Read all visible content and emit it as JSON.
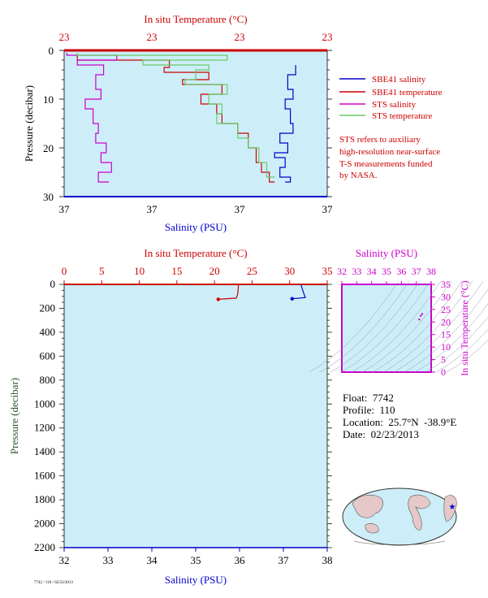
{
  "colors": {
    "plot_bg": "#cdeef8",
    "temperature": "#cc0000",
    "salinity": "#0000cc",
    "sts_salinity": "#cc00cc",
    "sts_temperature": "#66cc66",
    "axis": "#333333",
    "pressure_label": "#2a552a"
  },
  "chart_data": [
    {
      "type": "line",
      "name": "near-surface-profile",
      "top_axis_label": "In situ Temperature (°C)",
      "top_ticks": [
        "23",
        "23",
        "23",
        "23"
      ],
      "bottom_axis_label": "Salinity (PSU)",
      "bottom_ticks": [
        "37",
        "37",
        "37",
        "37"
      ],
      "ylabel": "Pressure (decibar)",
      "y_ticks": [
        "0",
        "10",
        "20",
        "30"
      ],
      "ylim": [
        0,
        30
      ],
      "legend": [
        {
          "label": "SBE41 salinity",
          "color": "#0000cc"
        },
        {
          "label": "SBE41 temperature",
          "color": "#cc0000"
        },
        {
          "label": "STS salinity",
          "color": "#cc00cc"
        },
        {
          "label": "STS temperature",
          "color": "#66cc66"
        }
      ],
      "note": [
        "STS refers to auxiliary",
        "high-resolution near-surface",
        "T-S measurements funded",
        "by NASA."
      ],
      "series": [
        {
          "name": "SBE41 salinity",
          "key": "sbe_sal",
          "scale": "x",
          "points": [
            [
              0.88,
              3
            ],
            [
              0.85,
              5
            ],
            [
              0.87,
              8
            ],
            [
              0.84,
              10
            ],
            [
              0.86,
              12
            ],
            [
              0.87,
              15
            ],
            [
              0.82,
              17
            ],
            [
              0.85,
              19
            ],
            [
              0.8,
              21
            ],
            [
              0.84,
              22
            ],
            [
              0.82,
              24
            ],
            [
              0.86,
              26
            ],
            [
              0.84,
              27
            ]
          ]
        },
        {
          "name": "SBE41 temperature",
          "key": "sbe_tem",
          "scale": "x",
          "points": [
            [
              0.05,
              1
            ],
            [
              0.4,
              2
            ],
            [
              0.38,
              3.5
            ],
            [
              0.55,
              4.5
            ],
            [
              0.45,
              6
            ],
            [
              0.6,
              7
            ],
            [
              0.52,
              9
            ],
            [
              0.58,
              11
            ],
            [
              0.6,
              13
            ],
            [
              0.66,
              15
            ],
            [
              0.7,
              17
            ],
            [
              0.73,
              20
            ],
            [
              0.75,
              23
            ],
            [
              0.78,
              25
            ],
            [
              0.8,
              27
            ]
          ]
        },
        {
          "name": "STS salinity",
          "key": "sts_sal",
          "scale": "x",
          "points": [
            [
              0.01,
              0.5
            ],
            [
              0.2,
              1
            ],
            [
              0.05,
              2
            ],
            [
              0.15,
              3
            ],
            [
              0.12,
              5
            ],
            [
              0.14,
              8
            ],
            [
              0.08,
              10
            ],
            [
              0.11,
              12
            ],
            [
              0.13,
              15
            ],
            [
              0.12,
              17
            ],
            [
              0.16,
              19
            ],
            [
              0.14,
              21
            ],
            [
              0.18,
              23
            ],
            [
              0.13,
              25
            ],
            [
              0.17,
              27
            ]
          ]
        },
        {
          "name": "STS temperature",
          "key": "sts_tem",
          "scale": "x",
          "points": [
            [
              0.05,
              0.5
            ],
            [
              0.62,
              1
            ],
            [
              0.3,
              2
            ],
            [
              0.55,
              3
            ],
            [
              0.5,
              4
            ],
            [
              0.46,
              6
            ],
            [
              0.62,
              7
            ],
            [
              0.55,
              9
            ],
            [
              0.6,
              11
            ],
            [
              0.58,
              13
            ],
            [
              0.66,
              15
            ],
            [
              0.7,
              18
            ],
            [
              0.74,
              20
            ],
            [
              0.77,
              23
            ],
            [
              0.8,
              26
            ]
          ]
        }
      ]
    },
    {
      "type": "line",
      "name": "full-depth-profile",
      "top_axis_label": "In situ Temperature (°C)",
      "top_ticks": [
        "0",
        "5",
        "10",
        "15",
        "20",
        "25",
        "30",
        "35"
      ],
      "xlim_top": [
        0,
        35
      ],
      "bottom_axis_label": "Salinity (PSU)",
      "bottom_ticks": [
        "32",
        "33",
        "34",
        "35",
        "36",
        "37",
        "38"
      ],
      "xlim_bottom": [
        32,
        38
      ],
      "ylabel": "Pressure (decibar)",
      "y_ticks": [
        "0",
        "200",
        "400",
        "600",
        "800",
        "1000",
        "1200",
        "1400",
        "1600",
        "1800",
        "2000",
        "2200"
      ],
      "ylim": [
        0,
        2200
      ],
      "series": [
        {
          "name": "Temperature",
          "key": "temperature",
          "axis": "top",
          "points": [
            [
              23.2,
              0
            ],
            [
              23.1,
              80
            ],
            [
              22.9,
              115
            ],
            [
              20.5,
              125
            ]
          ]
        },
        {
          "name": "Salinity",
          "key": "salinity",
          "axis": "bottom",
          "points": [
            [
              37.4,
              0
            ],
            [
              37.45,
              60
            ],
            [
              37.5,
              110
            ],
            [
              37.2,
              120
            ]
          ]
        }
      ]
    },
    {
      "type": "scatter",
      "name": "ts-diagram",
      "top_axis_label": "Salinity (PSU)",
      "x_ticks": [
        "32",
        "33",
        "34",
        "35",
        "36",
        "37",
        "38"
      ],
      "xlim": [
        32,
        38
      ],
      "right_axis_label": "In situ Temperature (°C)",
      "y_ticks": [
        "0",
        "5",
        "10",
        "15",
        "20",
        "25",
        "30",
        "35"
      ],
      "ylim": [
        0,
        35
      ],
      "points": [
        [
          37.4,
          23.2
        ],
        [
          37.3,
          22.5
        ],
        [
          37.2,
          21.0
        ]
      ]
    }
  ],
  "info": {
    "float": "Float:  7742",
    "profile": "Profile:  110",
    "location": "Location:  25.7°N  -38.9°E",
    "date": "Date:  02/23/2013"
  },
  "map": {
    "marker_color": "#0000cc"
  },
  "footer": "7742 / 110 / 02/23/2013"
}
